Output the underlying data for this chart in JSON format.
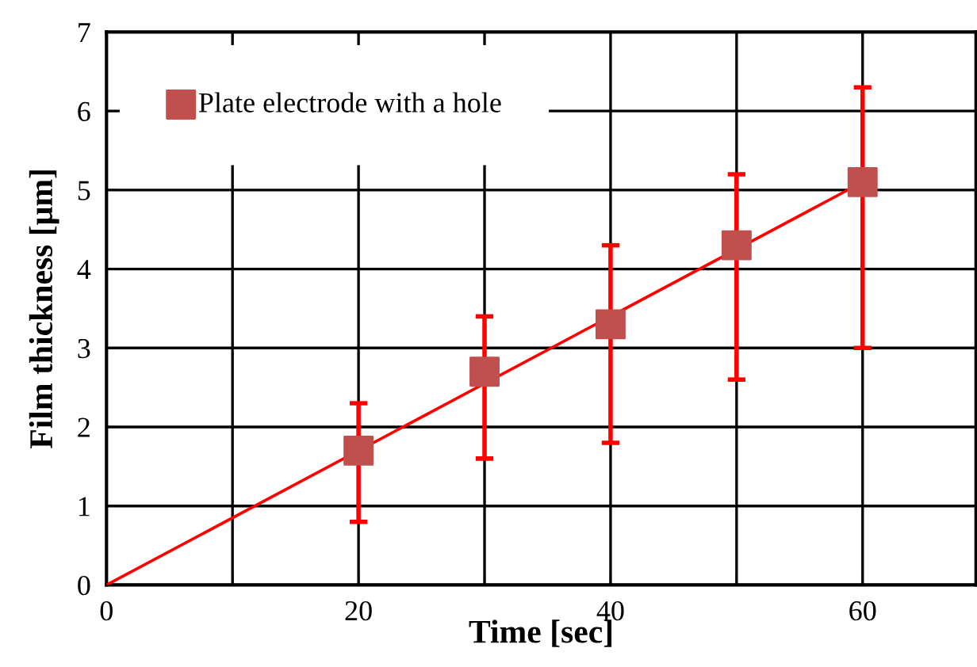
{
  "chart_data": {
    "type": "scatter",
    "xlabel": "Time [sec]",
    "ylabel": "Film thickness [μm]",
    "x": [
      20,
      30,
      40,
      50,
      60
    ],
    "series": [
      {
        "name": "Plate electrode with a hole",
        "color": "#c0504d",
        "values": [
          1.7,
          2.7,
          3.3,
          4.3,
          5.1
        ],
        "errors": [
          [
            0.8,
            2.3
          ],
          [
            1.6,
            3.4
          ],
          [
            1.8,
            4.3
          ],
          [
            2.6,
            5.2
          ],
          [
            3.0,
            6.3
          ]
        ],
        "marker": "square"
      },
      {
        "type": "line",
        "color": "#ff0000",
        "x": [
          0,
          60
        ],
        "values": [
          0,
          5.1
        ],
        "marker": "none",
        "line_style": "solid"
      }
    ],
    "xlim": [
      0,
      69
    ],
    "ylim": [
      0,
      7
    ],
    "xticks": [
      0,
      {
        "value": 10,
        "label": null
      },
      20,
      {
        "value": 30,
        "label": null
      },
      40,
      {
        "value": 50,
        "label": null
      },
      60
    ],
    "yticks": [
      0,
      1,
      2,
      3,
      4,
      5,
      6,
      7
    ],
    "grid": true,
    "legend": "top left"
  }
}
